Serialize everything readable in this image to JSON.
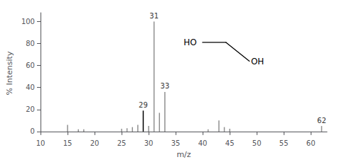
{
  "chart_data": {
    "type": "stem",
    "xlabel": "m/z",
    "ylabel": "% Intensity",
    "x": [
      15,
      17,
      18,
      25,
      26,
      27,
      28,
      29,
      30,
      31,
      32,
      33,
      41,
      43,
      44,
      45,
      62
    ],
    "values": [
      6,
      2,
      2,
      2.5,
      3,
      4,
      6,
      19,
      5,
      100,
      17,
      36,
      2,
      10,
      4,
      2.5,
      5
    ],
    "labels": [
      null,
      null,
      null,
      null,
      null,
      null,
      null,
      "29",
      null,
      "31",
      null,
      "33",
      null,
      null,
      null,
      null,
      "62"
    ],
    "colors": [
      "#909090",
      "#909090",
      "#909090",
      "#909090",
      "#909090",
      "#909090",
      "#909090",
      "#000000",
      "#909090",
      "#909090",
      "#909090",
      "#909090",
      "#909090",
      "#909090",
      "#909090",
      "#909090",
      "#909090"
    ],
    "xlim": [
      10,
      63
    ],
    "ylim": [
      -2,
      108
    ],
    "xticks": [
      10,
      15,
      20,
      25,
      30,
      35,
      40,
      45,
      50,
      55,
      60
    ],
    "yticks": [
      0,
      20,
      40,
      60,
      80,
      100
    ],
    "grid": false,
    "annotations": [
      "HO",
      "OH"
    ]
  }
}
